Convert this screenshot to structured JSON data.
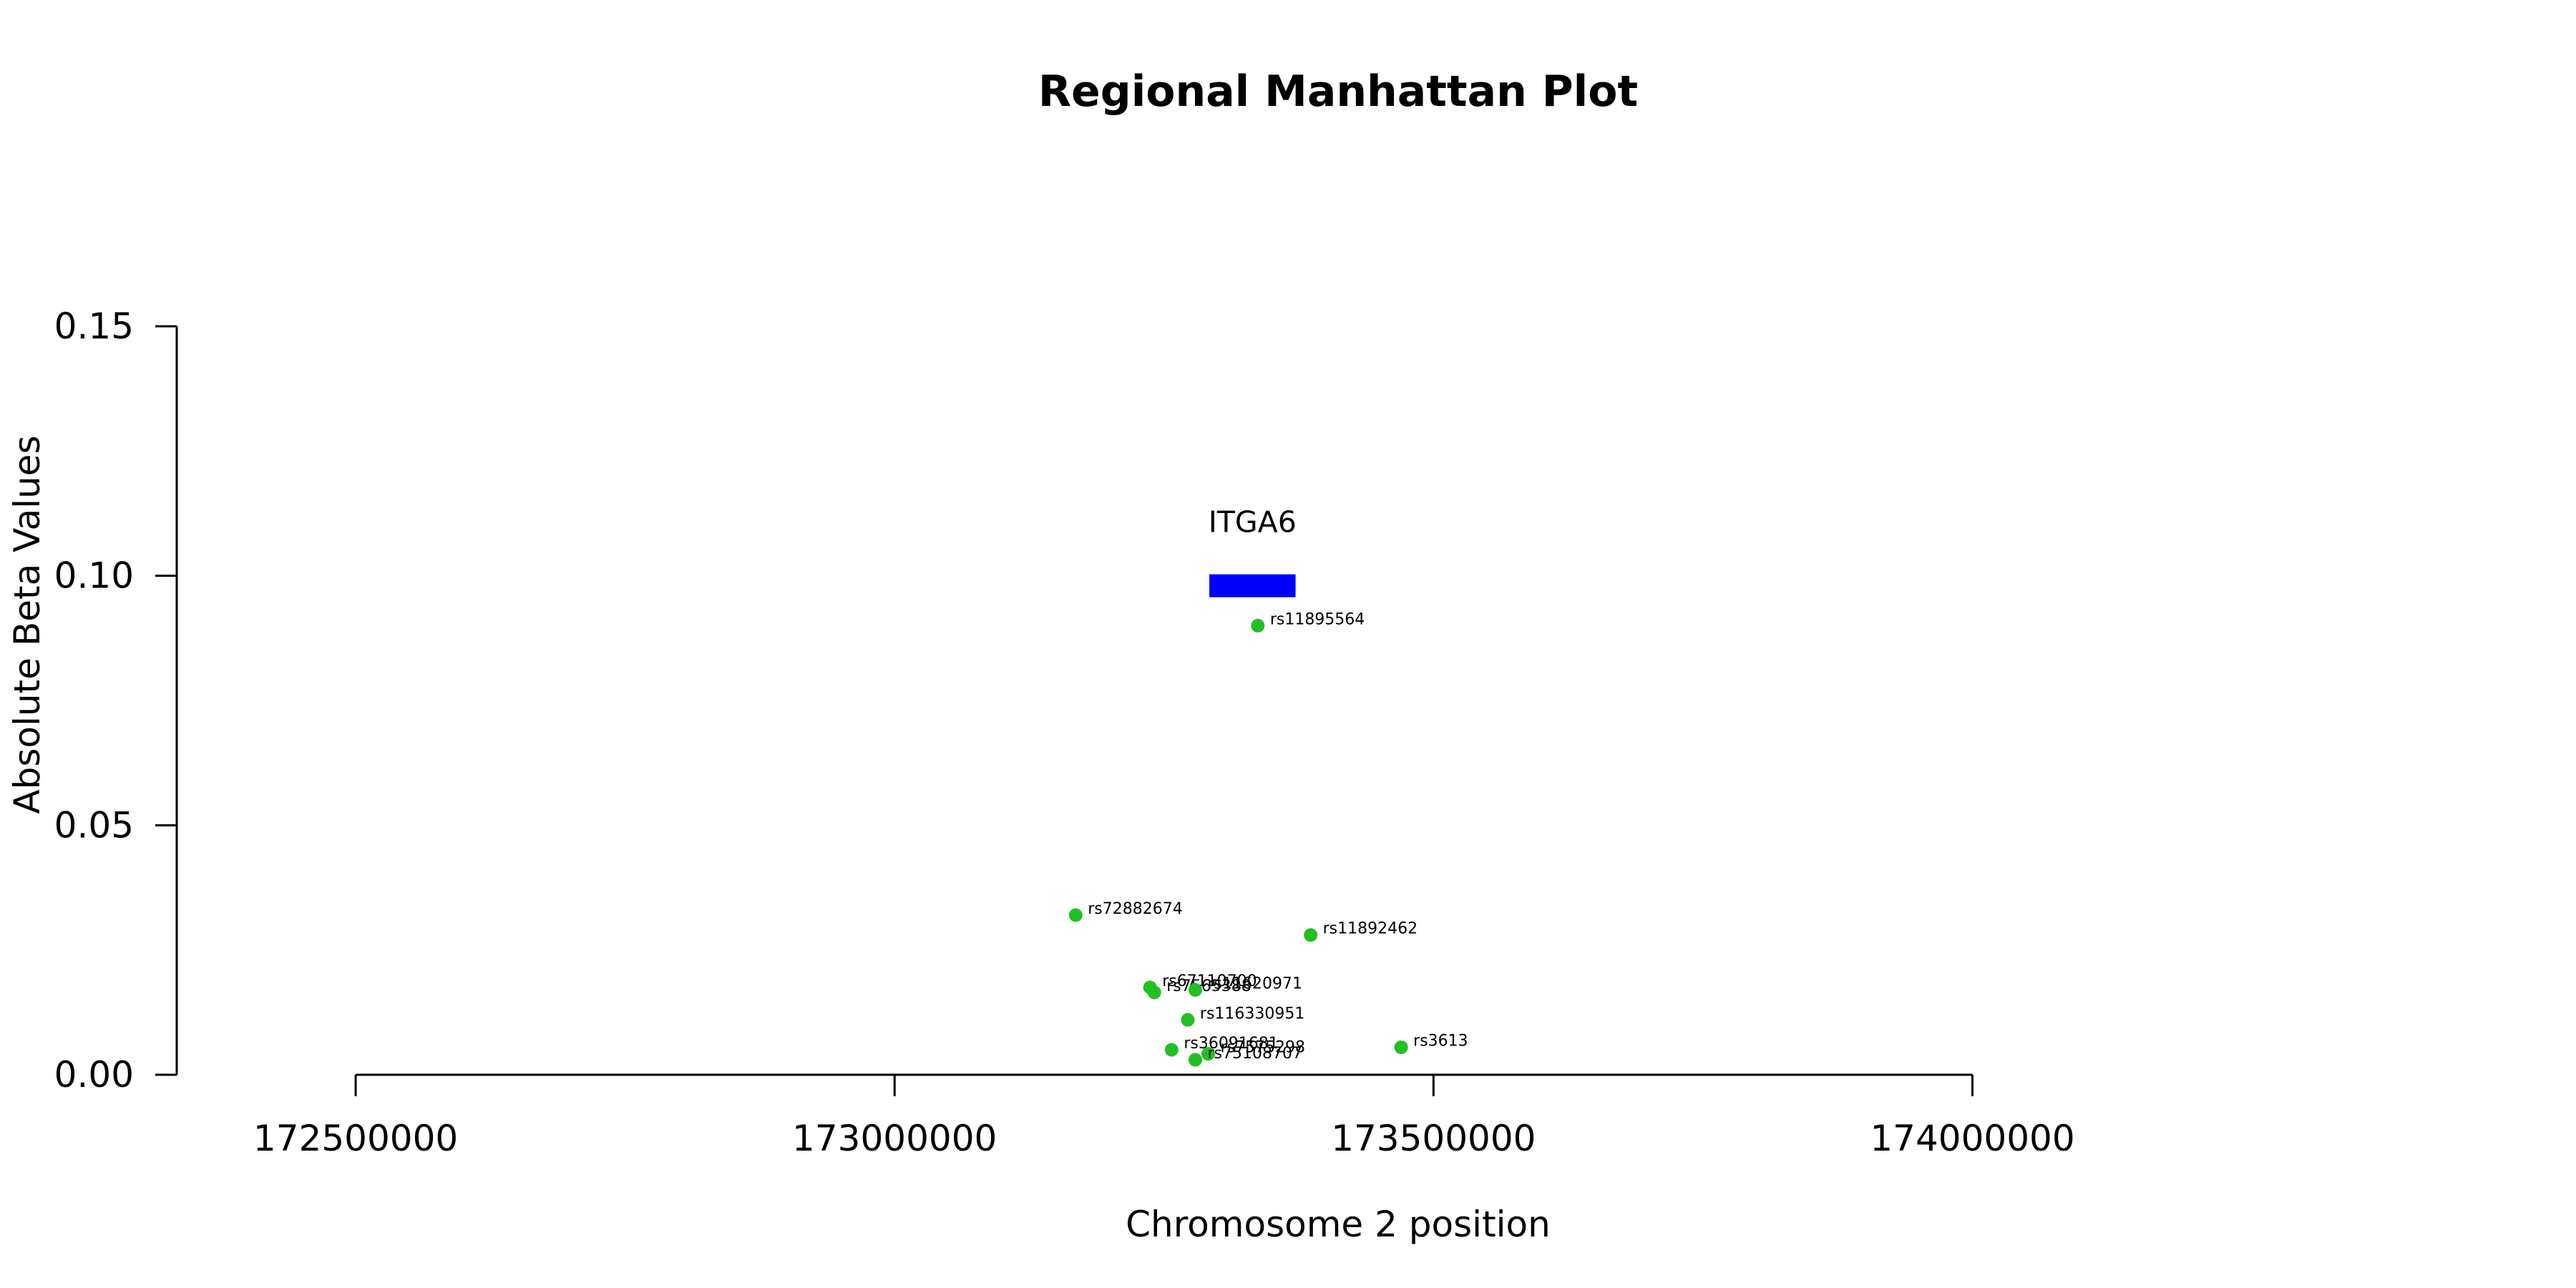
{
  "chart_data": {
    "type": "scatter",
    "title": "Regional Manhattan Plot",
    "xlabel": "Chromosome 2 position",
    "ylabel": "Absolute Beta Values",
    "xlim": [
      172170000,
      174560000
    ],
    "ylim": [
      0,
      0.15
    ],
    "x_ticks": [
      172500000,
      173000000,
      173500000,
      174000000
    ],
    "x_tick_labels": [
      "172500000",
      "173000000",
      "173500000",
      "174000000"
    ],
    "y_ticks": [
      0,
      0.05,
      0.1,
      0.15
    ],
    "y_tick_labels": [
      "0.00",
      "0.05",
      "0.10",
      "0.15"
    ],
    "grid": false,
    "point_color": "#22c022",
    "gene_color": "#0000ff",
    "genes": [
      {
        "name": "ITGA6",
        "start": 173292000,
        "end": 173372000,
        "y": 0.098
      }
    ],
    "points": [
      {
        "label": "rs11895564",
        "x": 173337000,
        "y": 0.09
      },
      {
        "label": "rs72882674",
        "x": 173168000,
        "y": 0.032
      },
      {
        "label": "rs11892462",
        "x": 173386000,
        "y": 0.028
      },
      {
        "label": "rs67110700",
        "x": 173237000,
        "y": 0.0175
      },
      {
        "label": "rs7565388",
        "x": 173241000,
        "y": 0.0165
      },
      {
        "label": "rs11620971",
        "x": 173279000,
        "y": 0.017
      },
      {
        "label": "rs116330951",
        "x": 173272000,
        "y": 0.011
      },
      {
        "label": "rs3613",
        "x": 173470000,
        "y": 0.0055
      },
      {
        "label": "rs36091681",
        "x": 173257000,
        "y": 0.005
      },
      {
        "label": "rs7575298",
        "x": 173291000,
        "y": 0.0042
      },
      {
        "label": "rs75108707",
        "x": 173279000,
        "y": 0.003
      }
    ]
  }
}
